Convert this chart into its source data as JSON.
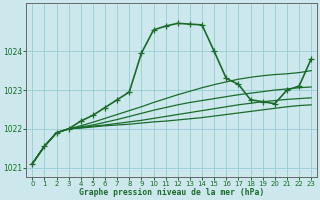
{
  "title": "Graphe pression niveau de la mer (hPa)",
  "bg_color": "#cce8ed",
  "grid_color": "#96cdd5",
  "line_color": "#1a6b2a",
  "spine_color": "#666666",
  "xlim": [
    -0.5,
    23.5
  ],
  "ylim": [
    1020.75,
    1025.25
  ],
  "yticks": [
    1021,
    1022,
    1023,
    1024
  ],
  "xticks": [
    0,
    1,
    2,
    3,
    4,
    5,
    6,
    7,
    8,
    9,
    10,
    11,
    12,
    13,
    14,
    15,
    16,
    17,
    18,
    19,
    20,
    21,
    22,
    23
  ],
  "series": [
    {
      "x": [
        0,
        1,
        2,
        3,
        4,
        5,
        6,
        7,
        8,
        9,
        10,
        11,
        12,
        13,
        14,
        15,
        16,
        17,
        18,
        19,
        20,
        21,
        22,
        23
      ],
      "y": [
        1021.1,
        1021.55,
        1021.9,
        1022.0,
        1022.02,
        1022.05,
        1022.08,
        1022.1,
        1022.12,
        1022.15,
        1022.18,
        1022.2,
        1022.23,
        1022.26,
        1022.29,
        1022.33,
        1022.37,
        1022.41,
        1022.45,
        1022.49,
        1022.53,
        1022.57,
        1022.6,
        1022.62
      ],
      "style": "line_only",
      "lw": 0.9
    },
    {
      "x": [
        0,
        1,
        2,
        3,
        4,
        5,
        6,
        7,
        8,
        9,
        10,
        11,
        12,
        13,
        14,
        15,
        16,
        17,
        18,
        19,
        20,
        21,
        22,
        23
      ],
      "y": [
        1021.1,
        1021.55,
        1021.9,
        1022.0,
        1022.03,
        1022.07,
        1022.1,
        1022.14,
        1022.18,
        1022.22,
        1022.27,
        1022.32,
        1022.37,
        1022.42,
        1022.47,
        1022.52,
        1022.57,
        1022.62,
        1022.66,
        1022.7,
        1022.73,
        1022.76,
        1022.78,
        1022.8
      ],
      "style": "line_only",
      "lw": 0.9
    },
    {
      "x": [
        0,
        1,
        2,
        3,
        4,
        5,
        6,
        7,
        8,
        9,
        10,
        11,
        12,
        13,
        14,
        15,
        16,
        17,
        18,
        19,
        20,
        21,
        22,
        23
      ],
      "y": [
        1021.1,
        1021.55,
        1021.9,
        1022.0,
        1022.05,
        1022.1,
        1022.17,
        1022.24,
        1022.32,
        1022.4,
        1022.48,
        1022.55,
        1022.62,
        1022.68,
        1022.73,
        1022.78,
        1022.83,
        1022.88,
        1022.92,
        1022.96,
        1023.0,
        1023.03,
        1023.06,
        1023.08
      ],
      "style": "line_only",
      "lw": 0.9
    },
    {
      "x": [
        0,
        1,
        2,
        3,
        4,
        5,
        6,
        7,
        8,
        9,
        10,
        11,
        12,
        13,
        14,
        15,
        16,
        17,
        18,
        19,
        20,
        21,
        22,
        23
      ],
      "y": [
        1021.1,
        1021.55,
        1021.9,
        1022.0,
        1022.08,
        1022.17,
        1022.27,
        1022.37,
        1022.47,
        1022.57,
        1022.68,
        1022.78,
        1022.88,
        1022.97,
        1023.06,
        1023.14,
        1023.21,
        1023.28,
        1023.33,
        1023.37,
        1023.4,
        1023.42,
        1023.45,
        1023.5
      ],
      "style": "line_only",
      "lw": 0.9
    },
    {
      "x": [
        0,
        1,
        2,
        3,
        4,
        5,
        6,
        7,
        8,
        9,
        10,
        11,
        12,
        13,
        14,
        15,
        16,
        17,
        18,
        19,
        20,
        21,
        22,
        23
      ],
      "y": [
        1021.1,
        1021.55,
        1021.9,
        1022.0,
        1022.2,
        1022.35,
        1022.55,
        1022.75,
        1022.95,
        1023.95,
        1024.55,
        1024.65,
        1024.72,
        1024.7,
        1024.68,
        1024.0,
        1023.3,
        1023.15,
        1022.75,
        1022.7,
        1022.65,
        1023.0,
        1023.1,
        1023.8
      ],
      "style": "line_marker",
      "lw": 1.2,
      "ms": 4.5
    }
  ]
}
